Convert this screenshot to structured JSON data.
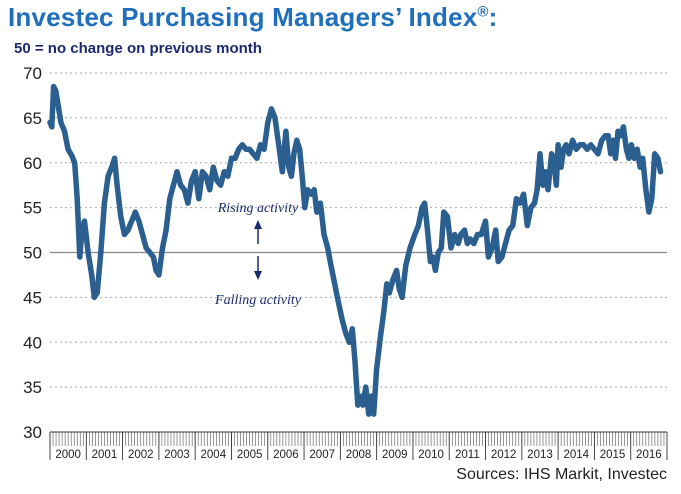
{
  "title_text": "Investec Purchasing Managers’ Index",
  "title_mark": "®",
  "title_colon": ":",
  "subtitle": "50 =  no change on previous month",
  "source": "Sources: IHS Markit, Investec",
  "colors": {
    "line": "#2a5f8f",
    "title": "#1f6fbd",
    "annotation": "#1b2a6e"
  },
  "chart_data": {
    "type": "line",
    "title": "Investec Purchasing Managers’ Index®:",
    "ylim": [
      30,
      70
    ],
    "yticks": [
      30,
      35,
      40,
      45,
      50,
      55,
      60,
      65,
      70
    ],
    "years": [
      "2000",
      "2001",
      "2002",
      "2003",
      "2004",
      "2005",
      "2006",
      "2007",
      "2008",
      "2009",
      "2010",
      "2011",
      "2012",
      "2013",
      "2014",
      "2015",
      "2016"
    ],
    "grid": "horizontal-dotted",
    "reference_line": 50,
    "annotations": [
      {
        "text": "Rising activity",
        "arrow": "up"
      },
      {
        "text": "Falling activity",
        "arrow": "down"
      }
    ],
    "series": [
      {
        "points": [
          [
            2000.0,
            64.5
          ],
          [
            2000.05,
            64.0
          ],
          [
            2000.1,
            68.5
          ],
          [
            2000.16,
            68.0
          ],
          [
            2000.22,
            66.5
          ],
          [
            2000.3,
            64.5
          ],
          [
            2000.4,
            63.5
          ],
          [
            2000.5,
            61.5
          ],
          [
            2000.6,
            60.8
          ],
          [
            2000.68,
            60.0
          ],
          [
            2000.75,
            56.0
          ],
          [
            2000.82,
            49.5
          ],
          [
            2000.88,
            52.5
          ],
          [
            2000.95,
            53.5
          ],
          [
            2001.05,
            50.0
          ],
          [
            2001.15,
            47.5
          ],
          [
            2001.22,
            45.0
          ],
          [
            2001.3,
            45.5
          ],
          [
            2001.4,
            50.0
          ],
          [
            2001.5,
            55.5
          ],
          [
            2001.6,
            58.5
          ],
          [
            2001.7,
            59.5
          ],
          [
            2001.78,
            60.5
          ],
          [
            2001.85,
            57.5
          ],
          [
            2001.95,
            54.0
          ],
          [
            2002.05,
            52.0
          ],
          [
            2002.15,
            52.5
          ],
          [
            2002.25,
            53.5
          ],
          [
            2002.35,
            54.5
          ],
          [
            2002.45,
            53.5
          ],
          [
            2002.55,
            52.0
          ],
          [
            2002.65,
            50.5
          ],
          [
            2002.75,
            50.0
          ],
          [
            2002.85,
            49.5
          ],
          [
            2002.92,
            48.0
          ],
          [
            2003.0,
            47.5
          ],
          [
            2003.1,
            50.5
          ],
          [
            2003.2,
            52.5
          ],
          [
            2003.3,
            56.0
          ],
          [
            2003.4,
            57.5
          ],
          [
            2003.5,
            59.0
          ],
          [
            2003.6,
            57.5
          ],
          [
            2003.7,
            57.0
          ],
          [
            2003.8,
            55.5
          ],
          [
            2003.9,
            58.0
          ],
          [
            2004.0,
            59.0
          ],
          [
            2004.1,
            56.0
          ],
          [
            2004.2,
            59.0
          ],
          [
            2004.3,
            58.5
          ],
          [
            2004.4,
            57.0
          ],
          [
            2004.5,
            59.5
          ],
          [
            2004.6,
            58.0
          ],
          [
            2004.7,
            57.5
          ],
          [
            2004.8,
            59.0
          ],
          [
            2004.9,
            58.5
          ],
          [
            2005.0,
            60.5
          ],
          [
            2005.1,
            60.5
          ],
          [
            2005.2,
            61.5
          ],
          [
            2005.3,
            62.0
          ],
          [
            2005.4,
            61.5
          ],
          [
            2005.5,
            61.5
          ],
          [
            2005.6,
            61.0
          ],
          [
            2005.7,
            60.5
          ],
          [
            2005.8,
            62.0
          ],
          [
            2005.9,
            61.5
          ],
          [
            2006.0,
            64.5
          ],
          [
            2006.1,
            66.0
          ],
          [
            2006.2,
            65.0
          ],
          [
            2006.3,
            62.0
          ],
          [
            2006.4,
            59.0
          ],
          [
            2006.5,
            63.5
          ],
          [
            2006.58,
            59.5
          ],
          [
            2006.65,
            58.5
          ],
          [
            2006.72,
            61.0
          ],
          [
            2006.8,
            62.5
          ],
          [
            2006.88,
            61.5
          ],
          [
            2006.95,
            58.5
          ],
          [
            2007.02,
            55.0
          ],
          [
            2007.1,
            57.0
          ],
          [
            2007.2,
            56.5
          ],
          [
            2007.28,
            57.0
          ],
          [
            2007.35,
            54.5
          ],
          [
            2007.45,
            55.5
          ],
          [
            2007.55,
            52.0
          ],
          [
            2007.65,
            50.5
          ],
          [
            2007.72,
            49.0
          ],
          [
            2007.82,
            47.0
          ],
          [
            2007.92,
            45.0
          ],
          [
            2008.05,
            42.5
          ],
          [
            2008.15,
            41.0
          ],
          [
            2008.25,
            40.0
          ],
          [
            2008.33,
            41.5
          ],
          [
            2008.4,
            38.0
          ],
          [
            2008.48,
            33.0
          ],
          [
            2008.55,
            34.0
          ],
          [
            2008.62,
            33.0
          ],
          [
            2008.7,
            35.0
          ],
          [
            2008.78,
            32.0
          ],
          [
            2008.85,
            34.0
          ],
          [
            2008.92,
            32.0
          ],
          [
            2009.0,
            37.0
          ],
          [
            2009.1,
            40.5
          ],
          [
            2009.2,
            43.5
          ],
          [
            2009.28,
            46.5
          ],
          [
            2009.35,
            45.5
          ],
          [
            2009.45,
            47.0
          ],
          [
            2009.55,
            48.0
          ],
          [
            2009.62,
            46.0
          ],
          [
            2009.7,
            45.0
          ],
          [
            2009.8,
            48.5
          ],
          [
            2009.92,
            50.5
          ],
          [
            2010.05,
            52.0
          ],
          [
            2010.15,
            53.0
          ],
          [
            2010.25,
            55.0
          ],
          [
            2010.32,
            55.5
          ],
          [
            2010.4,
            52.5
          ],
          [
            2010.48,
            49.0
          ],
          [
            2010.55,
            49.5
          ],
          [
            2010.62,
            48.0
          ],
          [
            2010.7,
            50.0
          ],
          [
            2010.78,
            50.5
          ],
          [
            2010.85,
            54.5
          ],
          [
            2010.95,
            54.0
          ],
          [
            2011.05,
            50.5
          ],
          [
            2011.15,
            52.0
          ],
          [
            2011.25,
            51.0
          ],
          [
            2011.32,
            52.0
          ],
          [
            2011.42,
            52.5
          ],
          [
            2011.5,
            51.0
          ],
          [
            2011.58,
            51.5
          ],
          [
            2011.68,
            51.0
          ],
          [
            2011.78,
            52.0
          ],
          [
            2011.88,
            52.0
          ],
          [
            2012.0,
            53.5
          ],
          [
            2012.08,
            49.5
          ],
          [
            2012.18,
            50.5
          ],
          [
            2012.28,
            52.5
          ],
          [
            2012.35,
            49.0
          ],
          [
            2012.45,
            49.5
          ],
          [
            2012.55,
            51.0
          ],
          [
            2012.65,
            52.5
          ],
          [
            2012.75,
            53.0
          ],
          [
            2012.85,
            56.0
          ],
          [
            2012.95,
            55.5
          ],
          [
            2013.05,
            56.5
          ],
          [
            2013.15,
            53.0
          ],
          [
            2013.25,
            55.0
          ],
          [
            2013.35,
            55.5
          ],
          [
            2013.42,
            57.0
          ],
          [
            2013.5,
            61.0
          ],
          [
            2013.58,
            57.5
          ],
          [
            2013.65,
            59.0
          ],
          [
            2013.72,
            57.0
          ],
          [
            2013.82,
            61.0
          ],
          [
            2013.88,
            60.5
          ],
          [
            2013.95,
            57.5
          ],
          [
            2014.0,
            62.0
          ],
          [
            2014.08,
            59.5
          ],
          [
            2014.15,
            61.5
          ],
          [
            2014.22,
            62.0
          ],
          [
            2014.3,
            61.0
          ],
          [
            2014.4,
            62.5
          ],
          [
            2014.5,
            61.5
          ],
          [
            2014.6,
            62.0
          ],
          [
            2014.7,
            62.0
          ],
          [
            2014.8,
            61.5
          ],
          [
            2014.9,
            62.0
          ],
          [
            2015.0,
            61.5
          ],
          [
            2015.1,
            61.0
          ],
          [
            2015.2,
            62.5
          ],
          [
            2015.3,
            63.0
          ],
          [
            2015.38,
            63.0
          ],
          [
            2015.45,
            61.0
          ],
          [
            2015.52,
            62.5
          ],
          [
            2015.58,
            60.5
          ],
          [
            2015.65,
            63.5
          ],
          [
            2015.72,
            63.0
          ],
          [
            2015.8,
            64.0
          ],
          [
            2015.88,
            61.5
          ],
          [
            2015.95,
            60.5
          ],
          [
            2016.02,
            62.0
          ],
          [
            2016.1,
            60.5
          ],
          [
            2016.18,
            61.5
          ],
          [
            2016.26,
            59.5
          ],
          [
            2016.33,
            60.5
          ],
          [
            2016.42,
            57.0
          ],
          [
            2016.5,
            54.5
          ],
          [
            2016.58,
            56.0
          ],
          [
            2016.66,
            61.0
          ],
          [
            2016.75,
            60.5
          ],
          [
            2016.82,
            59.0
          ]
        ]
      }
    ]
  }
}
